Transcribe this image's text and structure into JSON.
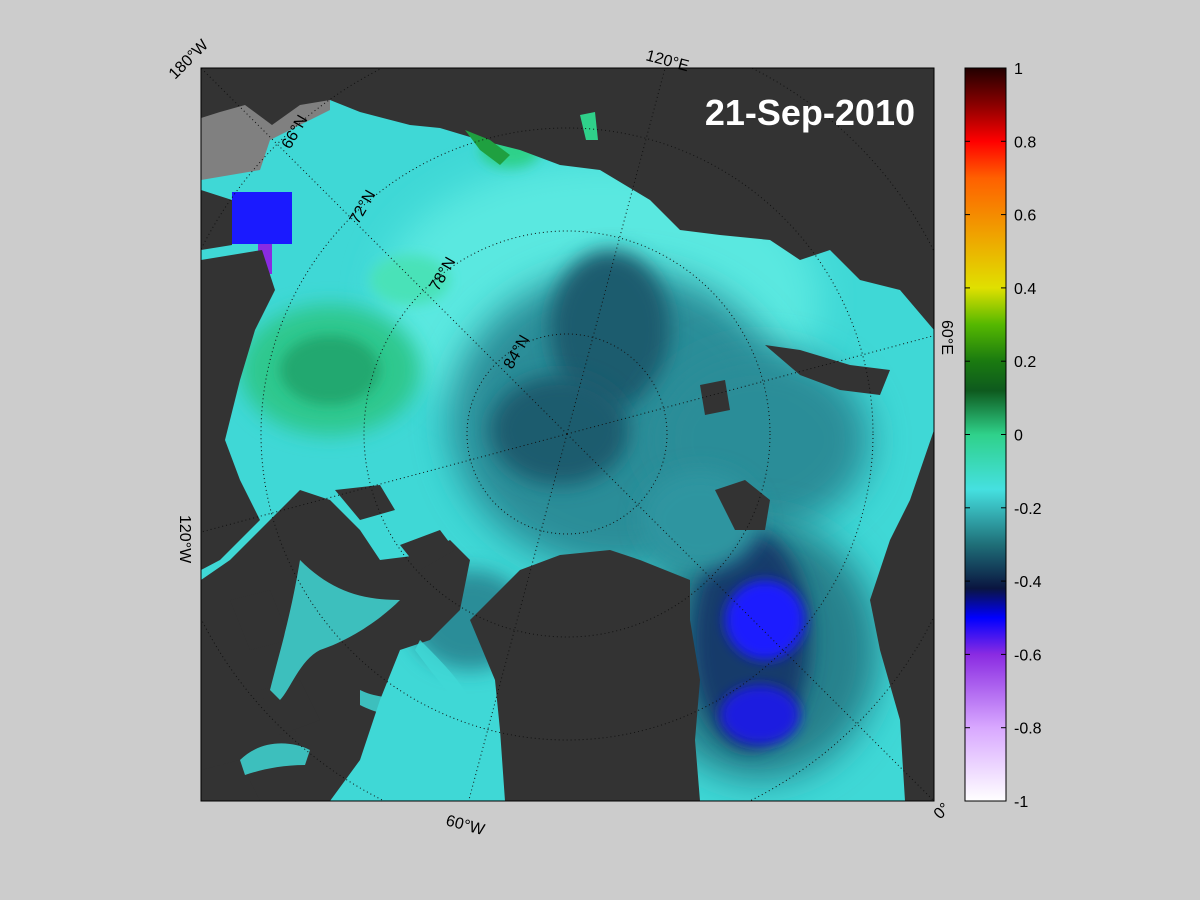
{
  "map": {
    "date": "21-Sep-2010",
    "projection": "north-polar-stereographic",
    "longitude_labels": [
      "180°W",
      "120°E",
      "60°E",
      "0°",
      "60°W",
      "120°W"
    ],
    "latitude_labels": [
      "66°N",
      "72°N",
      "78°N",
      "84°N"
    ],
    "colors": {
      "background": "#cccccc",
      "land": "#333333",
      "land_outline_shelf": "#808080",
      "grid": "#111111",
      "date_text": "#ffffff"
    }
  },
  "colorbar": {
    "ticks": [
      "1",
      "0.8",
      "0.6",
      "0.4",
      "0.2",
      "0",
      "-0.2",
      "-0.4",
      "-0.6",
      "-0.8",
      "-1"
    ],
    "range": [
      -1,
      1
    ],
    "stops": [
      {
        "v": -1.0,
        "color": "#ffffff"
      },
      {
        "v": -0.8,
        "color": "#d8a8ff"
      },
      {
        "v": -0.6,
        "color": "#8a2be2"
      },
      {
        "v": -0.5,
        "color": "#0000ff"
      },
      {
        "v": -0.42,
        "color": "#0a1540"
      },
      {
        "v": -0.3,
        "color": "#1f6f78"
      },
      {
        "v": -0.15,
        "color": "#45e0e0"
      },
      {
        "v": 0.0,
        "color": "#2fd18a"
      },
      {
        "v": 0.12,
        "color": "#0e5a1e"
      },
      {
        "v": 0.2,
        "color": "#1a7a10"
      },
      {
        "v": 0.3,
        "color": "#55b800"
      },
      {
        "v": 0.4,
        "color": "#e0e000"
      },
      {
        "v": 0.55,
        "color": "#f0a000"
      },
      {
        "v": 0.7,
        "color": "#ff6000"
      },
      {
        "v": 0.8,
        "color": "#ff0000"
      },
      {
        "v": 0.9,
        "color": "#8a0000"
      },
      {
        "v": 1.0,
        "color": "#220000"
      }
    ]
  }
}
